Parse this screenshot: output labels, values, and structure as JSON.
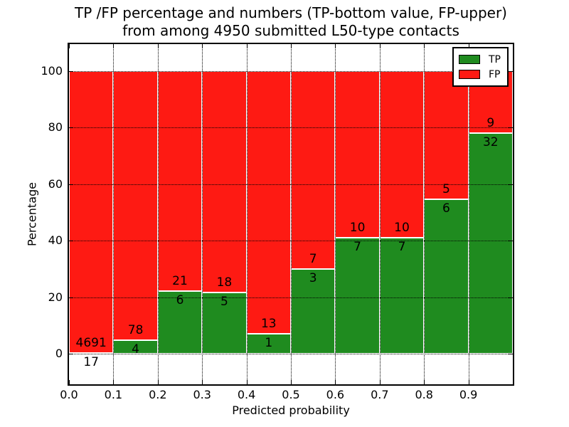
{
  "title": {
    "line1": "TP /FP percentage and numbers (TP-bottom value, FP-upper)",
    "line2": "from among 4950 submitted L50-type contacts"
  },
  "chart_data": {
    "type": "bar",
    "stacked": true,
    "normalized_to_percent": true,
    "title": "TP /FP percentage and numbers (TP-bottom value, FP-upper) from among 4950 submitted L50-type contacts",
    "xlabel": "Predicted probability",
    "ylabel": "Percentage",
    "categories": [
      "0.0-0.1",
      "0.1-0.2",
      "0.2-0.3",
      "0.3-0.4",
      "0.4-0.5",
      "0.5-0.6",
      "0.6-0.7",
      "0.7-0.8",
      "0.8-0.9",
      "0.9-1.0"
    ],
    "x_tick_labels": [
      "0.0",
      "0.1",
      "0.2",
      "0.3",
      "0.4",
      "0.5",
      "0.6",
      "0.7",
      "0.8",
      "0.9"
    ],
    "y_ticks": [
      0,
      20,
      40,
      60,
      80,
      100
    ],
    "xlim": [
      0.0,
      1.0
    ],
    "ylim": [
      -10.8,
      109.6
    ],
    "grid": "dotted, both axes, drawn over bars",
    "series": [
      {
        "name": "TP",
        "color": "#1f8b1f",
        "counts": [
          17,
          4,
          6,
          5,
          1,
          3,
          7,
          7,
          6,
          32
        ]
      },
      {
        "name": "FP",
        "color": "#fe1a13",
        "counts": [
          4691,
          78,
          21,
          18,
          13,
          7,
          10,
          10,
          5,
          9
        ]
      }
    ],
    "tp_percent_of_bin": [
      0.36,
      4.88,
      22.22,
      21.74,
      7.14,
      30.0,
      41.18,
      41.18,
      54.55,
      78.05
    ],
    "total_contacts": 4950,
    "legend": {
      "position": "upper right",
      "entries": [
        "TP",
        "FP"
      ]
    }
  }
}
